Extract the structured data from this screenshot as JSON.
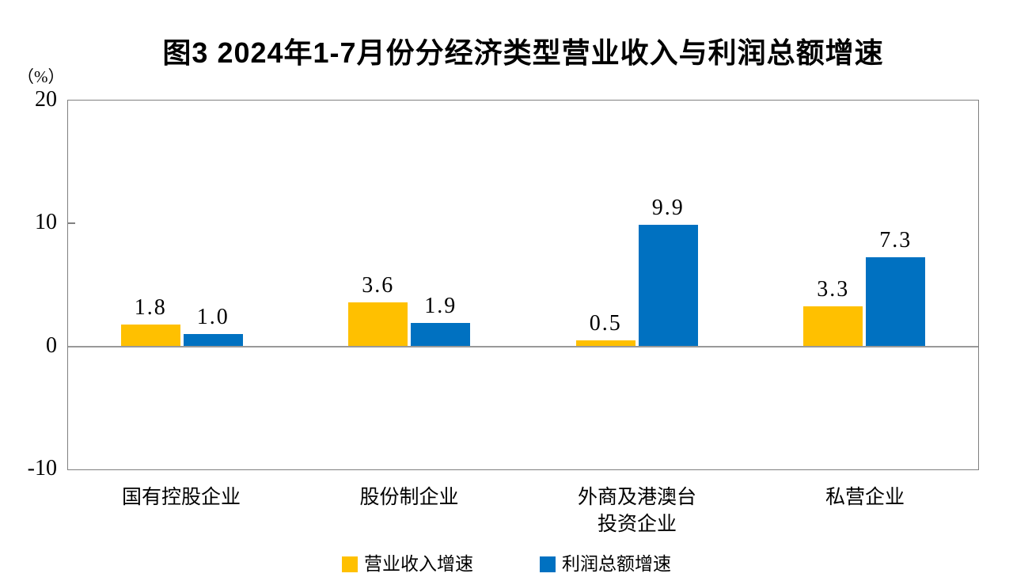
{
  "figure": {
    "title": "图3  2024年1-7月份分经济类型营业收入与利润总额增速",
    "unit_label": "（%）"
  },
  "chart_data": {
    "type": "bar",
    "title": "图3  2024年1-7月份分经济类型营业收入与利润总额增速",
    "ylabel": "（%）",
    "xlabel": "",
    "ylim": [
      -10,
      20
    ],
    "yticks": [
      20,
      10,
      0,
      -10
    ],
    "grid": false,
    "legend_position": "bottom",
    "categories": [
      "国有控股企业",
      "股份制企业",
      "外商及港澳台投资企业",
      "私营企业"
    ],
    "category_display_lines": [
      [
        "国有控股企业"
      ],
      [
        "股份制企业"
      ],
      [
        "外商及港澳台",
        "投资企业"
      ],
      [
        "私营企业"
      ]
    ],
    "series": [
      {
        "name": "营业收入增速",
        "color": "#FFC000",
        "values": [
          1.8,
          3.6,
          0.5,
          3.3
        ]
      },
      {
        "name": "利润总额增速",
        "color": "#0071C1",
        "values": [
          1.0,
          1.9,
          9.9,
          7.3
        ]
      }
    ],
    "value_label_decimals": 1,
    "axis_frame_color": "#808080",
    "zero_line_color": "#999999"
  }
}
